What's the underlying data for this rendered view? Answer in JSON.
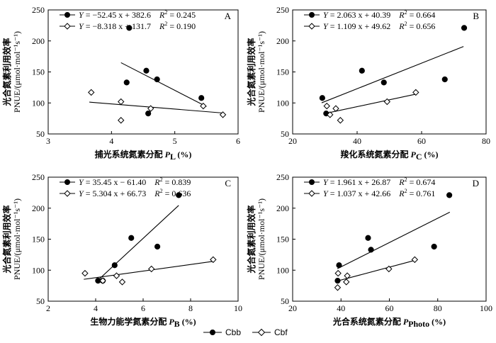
{
  "y_label_cn": "光合氮素利用效率",
  "y_label_unit": "PNUE/(μmol·mol⁻¹s⁻¹)",
  "legend": {
    "cbb": "Cbb",
    "cbf": "Cbf"
  },
  "chart_data": [
    {
      "type": "scatter",
      "panel": "A",
      "xlabel": "捕光系统氮素分配",
      "xsymbol": "P",
      "xsub": "L",
      "xunit": "(%)",
      "xlim": [
        3,
        6
      ],
      "xticks": [
        3,
        4,
        5,
        6
      ],
      "ylim": [
        50,
        250
      ],
      "yticks": [
        50,
        100,
        150,
        200,
        250
      ],
      "series": [
        {
          "name": "Cbb",
          "eq_y": "Y",
          "eq_rhs": " = −52.45 x + 382.6",
          "eq_r": "R",
          "eq_r2": " = 0.245",
          "slope": -52.45,
          "intercept": 382.6,
          "fit_x": [
            4.15,
            5.5
          ],
          "x": [
            4.28,
            4.55,
            4.72,
            4.24,
            5.42,
            4.58
          ],
          "y": [
            221,
            152,
            138,
            133,
            108,
            83
          ]
        },
        {
          "name": "Cbf",
          "eq_y": "Y",
          "eq_rhs": " = −8.318 x + 131.7",
          "eq_r": "R",
          "eq_r2": " = 0.190",
          "slope": -8.318,
          "intercept": 131.7,
          "fit_x": [
            3.65,
            5.75
          ],
          "x": [
            3.68,
            4.15,
            4.62,
            5.45,
            5.76,
            4.15
          ],
          "y": [
            117,
            102,
            91,
            95,
            81,
            72
          ]
        }
      ]
    },
    {
      "type": "scatter",
      "panel": "B",
      "xlabel": "羧化系统氮素分配",
      "xsymbol": "P",
      "xsub": "C",
      "xunit": "(%)",
      "xlim": [
        20,
        80
      ],
      "xticks": [
        20,
        40,
        60,
        80
      ],
      "ylim": [
        50,
        250
      ],
      "yticks": [
        50,
        100,
        150,
        200,
        250
      ],
      "series": [
        {
          "name": "Cbb",
          "eq_y": "Y",
          "eq_rhs": " = 2.063 x + 40.39",
          "eq_r": "R",
          "eq_r2": " = 0.664",
          "slope": 2.063,
          "intercept": 40.39,
          "fit_x": [
            29,
            73
          ],
          "x": [
            73.2,
            41.5,
            48.3,
            67.2,
            29.2,
            30.4
          ],
          "y": [
            221,
            152,
            133,
            138,
            108,
            83
          ]
        },
        {
          "name": "Cbf",
          "eq_y": "Y",
          "eq_rhs": " = 1.109 x + 49.62",
          "eq_r": "R",
          "eq_r2": " = 0.656",
          "slope": 1.109,
          "intercept": 49.62,
          "fit_x": [
            30,
            58.5
          ],
          "x": [
            58.2,
            49.3,
            30.6,
            33.4,
            31.6,
            34.8
          ],
          "y": [
            117,
            102,
            95,
            91,
            81,
            72
          ]
        }
      ]
    },
    {
      "type": "scatter",
      "panel": "C",
      "xlabel": "生物力能学氮素分配",
      "xsymbol": "P",
      "xsub": "B",
      "xunit": "(%)",
      "xlim": [
        2,
        10
      ],
      "xticks": [
        2,
        4,
        6,
        8,
        10
      ],
      "ylim": [
        50,
        250
      ],
      "yticks": [
        50,
        100,
        150,
        200,
        250
      ],
      "series": [
        {
          "name": "Cbb",
          "eq_y": "Y",
          "eq_rhs": " = 35.45 x − 61.40",
          "eq_r": "R",
          "eq_r2": " = 0.839",
          "slope": 35.45,
          "intercept": -61.4,
          "fit_x": [
            4.1,
            7.5
          ],
          "x": [
            7.5,
            5.5,
            6.6,
            4.8,
            4.1,
            4.3
          ],
          "y": [
            221,
            152,
            138,
            108,
            83,
            83
          ]
        },
        {
          "name": "Cbf",
          "eq_y": "Y",
          "eq_rhs": " = 5.304 x + 66.73",
          "eq_r": "R",
          "eq_r2": " = 0.636",
          "slope": 5.304,
          "intercept": 66.73,
          "fit_x": [
            3.5,
            9.0
          ],
          "x": [
            8.95,
            6.35,
            3.55,
            4.88,
            5.12,
            4.3
          ],
          "y": [
            117,
            102,
            95,
            91,
            81,
            83
          ]
        }
      ]
    },
    {
      "type": "scatter",
      "panel": "D",
      "xlabel": "光合系统氮素分配",
      "xsymbol": "P",
      "xsub": "Photo",
      "xunit": "(%)",
      "xlim": [
        20,
        100
      ],
      "xticks": [
        20,
        40,
        60,
        80,
        100
      ],
      "ylim": [
        50,
        250
      ],
      "yticks": [
        50,
        100,
        150,
        200,
        250
      ],
      "series": [
        {
          "name": "Cbb",
          "eq_y": "Y",
          "eq_rhs": " = 1.961 x + 26.87",
          "eq_r": "R",
          "eq_r2": " = 0.674",
          "slope": 1.961,
          "intercept": 26.87,
          "fit_x": [
            38.5,
            85
          ],
          "x": [
            84.8,
            51.2,
            78.5,
            52.4,
            39.2,
            38.6
          ],
          "y": [
            221,
            152,
            138,
            133,
            108,
            83
          ]
        },
        {
          "name": "Cbf",
          "eq_y": "Y",
          "eq_rhs": " = 1.037 x + 42.66",
          "eq_r": "R",
          "eq_r2": " = 0.761",
          "slope": 1.037,
          "intercept": 42.66,
          "fit_x": [
            38.5,
            70.5
          ],
          "x": [
            70.5,
            59.8,
            38.8,
            42.6,
            42.2,
            38.6
          ],
          "y": [
            117,
            102,
            95,
            91,
            81,
            72
          ]
        }
      ]
    }
  ]
}
